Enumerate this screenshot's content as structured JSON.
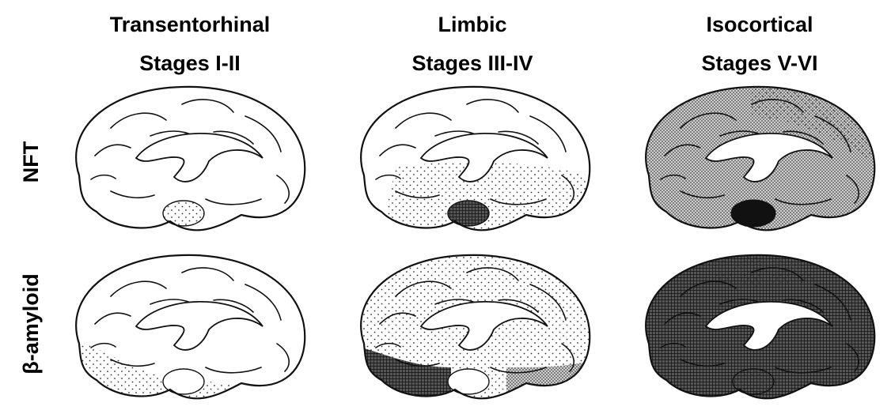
{
  "columns": [
    {
      "title": "Transentorhinal",
      "stages": "Stages I-II"
    },
    {
      "title": "Limbic",
      "stages": "Stages III-IV"
    },
    {
      "title": "Isocortical",
      "stages": "Stages V-VI"
    }
  ],
  "rows": [
    {
      "label": "NFT"
    },
    {
      "label": "β-amyloid"
    }
  ]
}
